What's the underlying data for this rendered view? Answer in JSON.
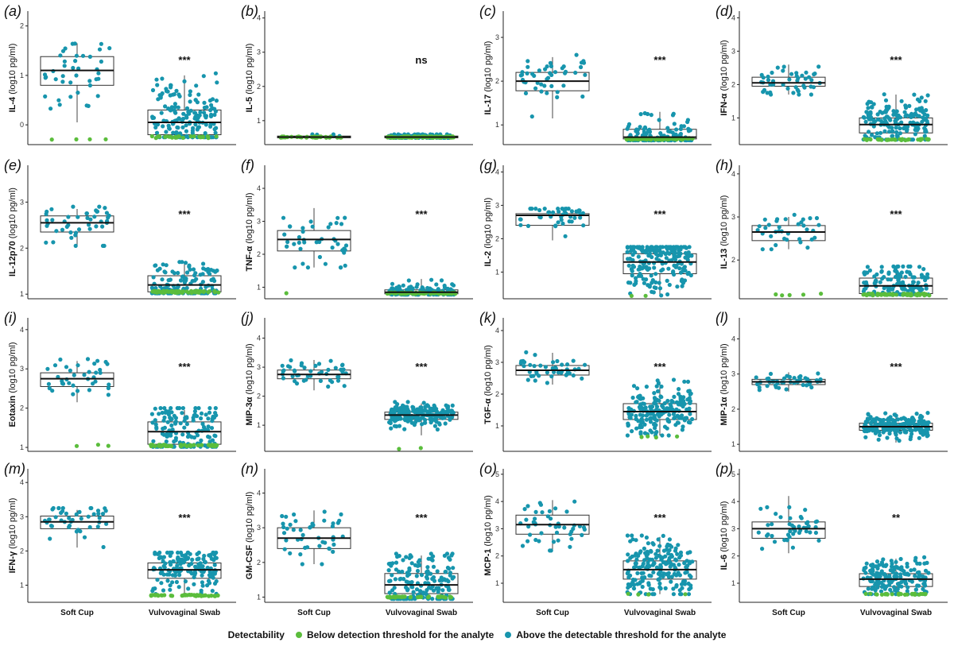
{
  "chart_data": {
    "type": "boxplot-jitter",
    "y_unit_label": "(log10 pg/ml)",
    "x_categories": [
      "Soft Cup",
      "Vulvovaginal Swab"
    ],
    "legend": {
      "title": "Detectability",
      "entries": [
        {
          "label": "Below detection threshold for the analyte",
          "color": "#5bbd3c"
        },
        {
          "label": "Above the detectable threshold for the analyte",
          "color": "#1795ad"
        }
      ]
    },
    "panels": [
      {
        "letter": "(a)",
        "analyte": "IL-4",
        "sig": "***",
        "ylim": [
          -0.4,
          2.3
        ],
        "yticks": [
          0,
          1,
          2
        ],
        "groups": [
          {
            "name": "Soft Cup",
            "q1": 0.8,
            "median": 1.1,
            "q3": 1.38,
            "wmin": 0.05,
            "wmax": 1.65,
            "n": 45,
            "below_n": 4,
            "below_value": -0.3
          },
          {
            "name": "Vulvovaginal Swab",
            "q1": -0.2,
            "median": 0.05,
            "q3": 0.3,
            "wmin": -0.25,
            "wmax": 1.0,
            "n": 190,
            "below_n": 25,
            "below_value": -0.25
          }
        ]
      },
      {
        "letter": "(b)",
        "analyte": "IL-5",
        "sig": "ns",
        "ylim": [
          0.3,
          4.2
        ],
        "yticks": [
          1,
          2,
          3,
          4
        ],
        "groups": [
          {
            "name": "Soft Cup",
            "q1": 0.5,
            "median": 0.52,
            "q3": 0.55,
            "wmin": 0.5,
            "wmax": 0.55,
            "n": 40,
            "below_n": 36,
            "below_value": 0.52
          },
          {
            "name": "Vulvovaginal Swab",
            "q1": 0.5,
            "median": 0.52,
            "q3": 0.55,
            "wmin": 0.5,
            "wmax": 0.55,
            "n": 180,
            "below_n": 90,
            "below_value": 0.52
          }
        ]
      },
      {
        "letter": "(c)",
        "analyte": "IL-17",
        "sig": "***",
        "ylim": [
          0.55,
          3.6
        ],
        "yticks": [
          1,
          2,
          3
        ],
        "groups": [
          {
            "name": "Soft Cup",
            "q1": 1.78,
            "median": 2.0,
            "q3": 2.2,
            "wmin": 1.15,
            "wmax": 2.55,
            "n": 45,
            "below_n": 0,
            "below_value": 0.7
          },
          {
            "name": "Vulvovaginal Swab",
            "q1": 0.68,
            "median": 0.72,
            "q3": 0.9,
            "wmin": 0.65,
            "wmax": 1.3,
            "n": 190,
            "below_n": 70,
            "below_value": 0.68
          }
        ]
      },
      {
        "letter": "(d)",
        "analyte": "IFN-α",
        "sig": "***",
        "ylim": [
          0.2,
          4.2
        ],
        "yticks": [
          1,
          2,
          3,
          4
        ],
        "groups": [
          {
            "name": "Soft Cup",
            "q1": 1.95,
            "median": 2.05,
            "q3": 2.22,
            "wmin": 1.7,
            "wmax": 2.6,
            "n": 45,
            "below_n": 0,
            "below_value": 0.35
          },
          {
            "name": "Vulvovaginal Swab",
            "q1": 0.55,
            "median": 0.8,
            "q3": 1.0,
            "wmin": 0.35,
            "wmax": 1.7,
            "n": 200,
            "below_n": 30,
            "below_value": 0.35
          }
        ]
      },
      {
        "letter": "(e)",
        "analyte": "IL-12p70",
        "sig": "***",
        "ylim": [
          0.9,
          3.8
        ],
        "yticks": [
          1,
          2,
          3
        ],
        "groups": [
          {
            "name": "Soft Cup",
            "q1": 2.35,
            "median": 2.55,
            "q3": 2.7,
            "wmin": 2.05,
            "wmax": 2.85,
            "n": 45,
            "below_n": 0,
            "below_value": 1.05
          },
          {
            "name": "Vulvovaginal Swab",
            "q1": 1.05,
            "median": 1.2,
            "q3": 1.4,
            "wmin": 1.02,
            "wmax": 1.65,
            "n": 190,
            "below_n": 60,
            "below_value": 1.05
          }
        ]
      },
      {
        "letter": "(f)",
        "analyte": "TNF-α",
        "sig": "***",
        "ylim": [
          0.65,
          4.7
        ],
        "yticks": [
          1,
          2,
          3,
          4
        ],
        "groups": [
          {
            "name": "Soft Cup",
            "q1": 2.1,
            "median": 2.45,
            "q3": 2.72,
            "wmin": 1.6,
            "wmax": 3.4,
            "n": 45,
            "below_n": 1,
            "below_value": 0.8
          },
          {
            "name": "Vulvovaginal Swab",
            "q1": 0.8,
            "median": 0.85,
            "q3": 0.92,
            "wmin": 0.78,
            "wmax": 1.25,
            "n": 190,
            "below_n": 70,
            "below_value": 0.82
          }
        ]
      },
      {
        "letter": "(g)",
        "analyte": "IL-2",
        "sig": "***",
        "ylim": [
          0.2,
          4.2
        ],
        "yticks": [
          1,
          2,
          3,
          4
        ],
        "groups": [
          {
            "name": "Soft Cup",
            "q1": 2.4,
            "median": 2.7,
            "q3": 2.75,
            "wmin": 1.95,
            "wmax": 2.85,
            "n": 45,
            "below_n": 0,
            "below_value": 0.3
          },
          {
            "name": "Vulvovaginal Swab",
            "q1": 0.95,
            "median": 1.3,
            "q3": 1.55,
            "wmin": 0.3,
            "wmax": 1.7,
            "n": 200,
            "below_n": 2,
            "below_value": 0.3
          }
        ]
      },
      {
        "letter": "(h)",
        "analyte": "IL-13",
        "sig": "***",
        "ylim": [
          1.1,
          4.2
        ],
        "yticks": [
          2,
          3,
          4
        ],
        "groups": [
          {
            "name": "Soft Cup",
            "q1": 2.45,
            "median": 2.65,
            "q3": 2.8,
            "wmin": 2.25,
            "wmax": 3.0,
            "n": 40,
            "below_n": 5,
            "below_value": 1.2
          },
          {
            "name": "Vulvovaginal Swab",
            "q1": 1.22,
            "median": 1.4,
            "q3": 1.58,
            "wmin": 1.2,
            "wmax": 1.8,
            "n": 190,
            "below_n": 50,
            "below_value": 1.2
          }
        ]
      },
      {
        "letter": "(i)",
        "analyte": "Eotaxin",
        "sig": "***",
        "ylim": [
          0.9,
          4.3
        ],
        "yticks": [
          1,
          2,
          3,
          4
        ],
        "groups": [
          {
            "name": "Soft Cup",
            "q1": 2.55,
            "median": 2.75,
            "q3": 2.9,
            "wmin": 2.15,
            "wmax": 3.2,
            "n": 40,
            "below_n": 3,
            "below_value": 1.05
          },
          {
            "name": "Vulvovaginal Swab",
            "q1": 1.08,
            "median": 1.4,
            "q3": 1.65,
            "wmin": 1.02,
            "wmax": 1.95,
            "n": 190,
            "below_n": 45,
            "below_value": 1.05
          }
        ]
      },
      {
        "letter": "(j)",
        "analyte": "MIP-3α",
        "sig": "***",
        "ylim": [
          0.1,
          4.7
        ],
        "yticks": [
          1,
          2,
          3,
          4
        ],
        "groups": [
          {
            "name": "Soft Cup",
            "q1": 2.6,
            "median": 2.75,
            "q3": 2.9,
            "wmin": 2.2,
            "wmax": 3.25,
            "n": 45,
            "below_n": 0,
            "below_value": 0.2
          },
          {
            "name": "Vulvovaginal Swab",
            "q1": 1.2,
            "median": 1.35,
            "q3": 1.45,
            "wmin": 0.65,
            "wmax": 1.75,
            "n": 200,
            "below_n": 2,
            "below_value": 0.2
          }
        ]
      },
      {
        "letter": "(k)",
        "analyte": "TGF-α",
        "sig": "***",
        "ylim": [
          0.2,
          4.4
        ],
        "yticks": [
          1,
          2,
          3,
          4
        ],
        "groups": [
          {
            "name": "Soft Cup",
            "q1": 2.6,
            "median": 2.75,
            "q3": 2.9,
            "wmin": 2.3,
            "wmax": 3.3,
            "n": 45,
            "below_n": 0,
            "below_value": 0.65
          },
          {
            "name": "Vulvovaginal Swab",
            "q1": 1.2,
            "median": 1.45,
            "q3": 1.7,
            "wmin": 0.7,
            "wmax": 2.4,
            "n": 200,
            "below_n": 4,
            "below_value": 0.65
          }
        ]
      },
      {
        "letter": "(l)",
        "analyte": "MIP-1α",
        "sig": "***",
        "ylim": [
          0.8,
          4.6
        ],
        "yticks": [
          1,
          2,
          3,
          4
        ],
        "groups": [
          {
            "name": "Soft Cup",
            "q1": 2.7,
            "median": 2.78,
            "q3": 2.85,
            "wmin": 2.5,
            "wmax": 3.05,
            "n": 45,
            "below_n": 0,
            "below_value": 1.0
          },
          {
            "name": "Vulvovaginal Swab",
            "q1": 1.4,
            "median": 1.5,
            "q3": 1.6,
            "wmin": 1.05,
            "wmax": 1.9,
            "n": 200,
            "below_n": 0,
            "below_value": 1.0
          }
        ]
      },
      {
        "letter": "(m)",
        "analyte": "IFN-γ",
        "sig": "***",
        "ylim": [
          0.5,
          4.4
        ],
        "yticks": [
          1,
          2,
          3,
          4
        ],
        "groups": [
          {
            "name": "Soft Cup",
            "q1": 2.65,
            "median": 2.85,
            "q3": 3.02,
            "wmin": 2.1,
            "wmax": 3.2,
            "n": 45,
            "below_n": 0,
            "below_value": 0.7
          },
          {
            "name": "Vulvovaginal Swab",
            "q1": 1.2,
            "median": 1.45,
            "q3": 1.65,
            "wmin": 0.65,
            "wmax": 1.9,
            "n": 200,
            "below_n": 40,
            "below_value": 0.7
          }
        ]
      },
      {
        "letter": "(n)",
        "analyte": "GM-CSF",
        "sig": "***",
        "ylim": [
          0.85,
          4.7
        ],
        "yticks": [
          1,
          2,
          3,
          4
        ],
        "groups": [
          {
            "name": "Soft Cup",
            "q1": 2.4,
            "median": 2.7,
            "q3": 3.0,
            "wmin": 1.95,
            "wmax": 3.5,
            "n": 45,
            "below_n": 0,
            "below_value": 1.0
          },
          {
            "name": "Vulvovaginal Swab",
            "q1": 1.1,
            "median": 1.35,
            "q3": 1.68,
            "wmin": 0.95,
            "wmax": 2.2,
            "n": 200,
            "below_n": 40,
            "below_value": 1.0
          }
        ]
      },
      {
        "letter": "(o)",
        "analyte": "MCP-1",
        "sig": "***",
        "ylim": [
          0.3,
          5.2
        ],
        "yticks": [
          1,
          2,
          3,
          4,
          5
        ],
        "groups": [
          {
            "name": "Soft Cup",
            "q1": 2.8,
            "median": 3.15,
            "q3": 3.5,
            "wmin": 2.2,
            "wmax": 4.05,
            "n": 45,
            "below_n": 0,
            "below_value": 0.6
          },
          {
            "name": "Vulvovaginal Swab",
            "q1": 1.15,
            "median": 1.5,
            "q3": 1.82,
            "wmin": 0.6,
            "wmax": 2.7,
            "n": 200,
            "below_n": 4,
            "below_value": 0.6
          }
        ]
      },
      {
        "letter": "(p)",
        "analyte": "IL-6",
        "sig": "**",
        "ylim": [
          0.3,
          5.2
        ],
        "yticks": [
          1,
          2,
          3,
          4,
          5
        ],
        "groups": [
          {
            "name": "Soft Cup",
            "q1": 2.65,
            "median": 3.0,
            "q3": 3.25,
            "wmin": 2.1,
            "wmax": 4.2,
            "n": 45,
            "below_n": 0,
            "below_value": 0.6
          },
          {
            "name": "Vulvovaginal Swab",
            "q1": 0.88,
            "median": 1.15,
            "q3": 1.35,
            "wmin": 0.6,
            "wmax": 1.9,
            "n": 200,
            "below_n": 25,
            "below_value": 0.6
          }
        ]
      }
    ]
  }
}
